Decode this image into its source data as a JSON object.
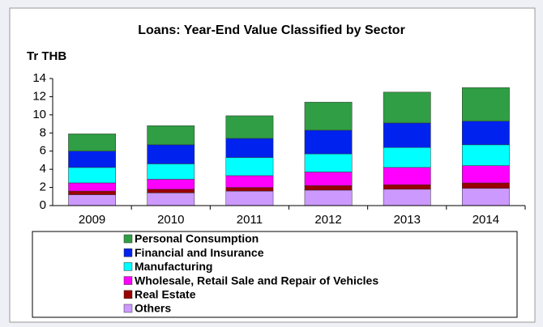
{
  "chart_data": {
    "type": "stacked_bar",
    "title": "Loans: Year-End Value Classified by Sector",
    "y_label": "Tr THB",
    "categories": [
      "2009",
      "2010",
      "2011",
      "2012",
      "2013",
      "2014"
    ],
    "series": [
      {
        "name": "Others",
        "color": "#cc99ff",
        "values": [
          1.2,
          1.4,
          1.6,
          1.7,
          1.8,
          1.9
        ]
      },
      {
        "name": "Real Estate",
        "color": "#990000",
        "values": [
          0.4,
          0.4,
          0.4,
          0.5,
          0.5,
          0.6
        ]
      },
      {
        "name": "Wholesale, Retail Sale and Repair of Vehicles",
        "color": "#ff00ff",
        "values": [
          0.9,
          1.1,
          1.3,
          1.5,
          1.9,
          1.9
        ]
      },
      {
        "name": "Manufacturing",
        "color": "#00ffff",
        "values": [
          1.7,
          1.7,
          2.0,
          2.0,
          2.2,
          2.3
        ]
      },
      {
        "name": "Financial and Insurance",
        "color": "#0022ee",
        "values": [
          1.8,
          2.1,
          2.1,
          2.6,
          2.7,
          2.6
        ]
      },
      {
        "name": "Personal Consumption",
        "color": "#2f9e44",
        "values": [
          1.9,
          2.1,
          2.5,
          3.1,
          3.4,
          3.7
        ]
      }
    ],
    "ylim": [
      0,
      14
    ],
    "yticks": [
      0,
      2,
      4,
      6,
      8,
      10,
      12,
      14
    ],
    "grid": false
  }
}
